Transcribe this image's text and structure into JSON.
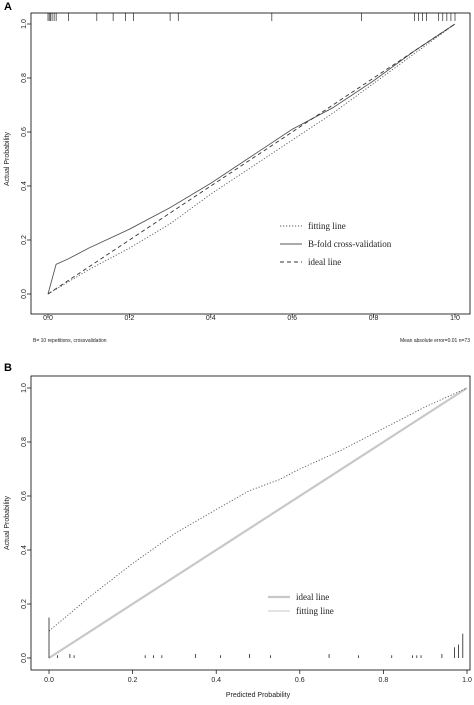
{
  "chart_data": [
    {
      "panel_label": "A",
      "type": "line",
      "xlabel": "",
      "ylabel": "Actual Probability",
      "xlim": [
        0,
        1
      ],
      "ylim": [
        0,
        1
      ],
      "x_ticks": [
        "0.0",
        "0.2",
        "0.4",
        "0.6",
        "0.8",
        "1.0"
      ],
      "y_ticks": [
        "0.0",
        "0.2",
        "0.4",
        "0.6",
        "0.8",
        "1.0"
      ],
      "footnote_left": "B= 10 repetitions, crossvalidation",
      "footnote_right": "Mean absolute error=0.01 n=73",
      "legend_position": "center-right",
      "series": [
        {
          "name": "fitting line",
          "style": "dotted",
          "color": "#555555",
          "x": [
            0.0,
            0.1,
            0.2,
            0.3,
            0.4,
            0.5,
            0.6,
            0.7,
            0.8,
            0.9,
            1.0
          ],
          "y": [
            0.0,
            0.09,
            0.17,
            0.26,
            0.37,
            0.47,
            0.57,
            0.67,
            0.78,
            0.89,
            1.0
          ]
        },
        {
          "name": "B-fold cross-validation",
          "style": "solid",
          "color": "#555555",
          "x": [
            0.0,
            0.02,
            0.05,
            0.1,
            0.2,
            0.3,
            0.4,
            0.5,
            0.6,
            0.7,
            0.8,
            0.9,
            1.0
          ],
          "y": [
            0.0,
            0.11,
            0.13,
            0.17,
            0.24,
            0.32,
            0.41,
            0.51,
            0.61,
            0.69,
            0.79,
            0.9,
            1.0
          ]
        },
        {
          "name": "ideal line",
          "style": "dashed",
          "color": "#333333",
          "x": [
            0.0,
            1.0
          ],
          "y": [
            0.0,
            1.0
          ]
        }
      ],
      "rug_top": [
        0.0,
        0.003,
        0.006,
        0.01,
        0.015,
        0.02,
        0.05,
        0.12,
        0.16,
        0.19,
        0.21,
        0.3,
        0.32,
        0.55,
        0.77,
        0.9,
        0.91,
        0.92,
        0.93,
        0.96,
        0.97,
        0.98,
        0.99,
        1.0
      ]
    },
    {
      "panel_label": "B",
      "type": "line",
      "xlabel": "Predicted Probability",
      "ylabel": "Actual Probability",
      "xlim": [
        0,
        1
      ],
      "ylim": [
        0,
        1
      ],
      "x_ticks": [
        "0.0",
        "0.2",
        "0.4",
        "0.6",
        "0.8",
        "1.0"
      ],
      "y_ticks": [
        "0.0",
        "0.2",
        "0.4",
        "0.6",
        "0.8",
        "1.0"
      ],
      "legend_position": "center-right",
      "series": [
        {
          "name": "ideal line",
          "style": "solid-thick",
          "color": "#c8c8c8",
          "x": [
            0.0,
            1.0
          ],
          "y": [
            0.0,
            1.0
          ]
        },
        {
          "name": "fitting line",
          "style": "solid",
          "color": "#c8c8c8",
          "x": [
            0.0,
            1.0
          ],
          "y": [
            0.0,
            1.0
          ]
        },
        {
          "name": "",
          "style": "dotted",
          "color": "#555555",
          "x": [
            0.0,
            0.1,
            0.2,
            0.3,
            0.4,
            0.48,
            0.55,
            0.6,
            0.7,
            0.8,
            0.9,
            1.0
          ],
          "y": [
            0.1,
            0.23,
            0.35,
            0.46,
            0.55,
            0.62,
            0.66,
            0.7,
            0.77,
            0.85,
            0.93,
            1.0
          ]
        }
      ],
      "spikes_bottom": [
        {
          "x": 0.0,
          "h": 0.15
        },
        {
          "x": 0.02,
          "h": 0.01
        },
        {
          "x": 0.05,
          "h": 0.015
        },
        {
          "x": 0.06,
          "h": 0.01
        },
        {
          "x": 0.23,
          "h": 0.01
        },
        {
          "x": 0.25,
          "h": 0.01
        },
        {
          "x": 0.27,
          "h": 0.01
        },
        {
          "x": 0.35,
          "h": 0.015
        },
        {
          "x": 0.41,
          "h": 0.01
        },
        {
          "x": 0.48,
          "h": 0.015
        },
        {
          "x": 0.53,
          "h": 0.01
        },
        {
          "x": 0.67,
          "h": 0.015
        },
        {
          "x": 0.74,
          "h": 0.01
        },
        {
          "x": 0.82,
          "h": 0.01
        },
        {
          "x": 0.87,
          "h": 0.01
        },
        {
          "x": 0.88,
          "h": 0.01
        },
        {
          "x": 0.89,
          "h": 0.01
        },
        {
          "x": 0.94,
          "h": 0.015
        },
        {
          "x": 0.97,
          "h": 0.04
        },
        {
          "x": 0.98,
          "h": 0.05
        },
        {
          "x": 0.99,
          "h": 0.09
        }
      ]
    }
  ]
}
